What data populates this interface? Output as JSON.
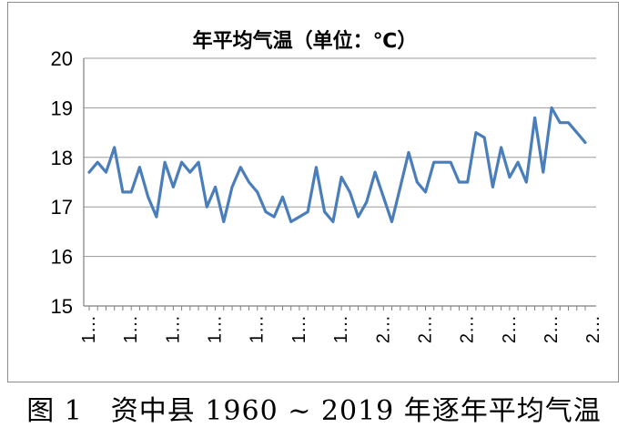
{
  "chart_data": {
    "type": "line",
    "title": "年平均气温（单位：℃）",
    "xlabel": "",
    "ylabel": "",
    "ylim": [
      15,
      20
    ],
    "yticks": [
      "15",
      "16",
      "17",
      "18",
      "19",
      "20"
    ],
    "x_tick_labels": [
      "1…",
      "1…",
      "1…",
      "1…",
      "1…",
      "1…",
      "1…",
      "2…",
      "2…",
      "2…",
      "2…",
      "2…",
      "2…"
    ],
    "grid": "horizontal",
    "series_color": "#4a7ebb",
    "x": [
      1960,
      1961,
      1962,
      1963,
      1964,
      1965,
      1966,
      1967,
      1968,
      1969,
      1970,
      1971,
      1972,
      1973,
      1974,
      1975,
      1976,
      1977,
      1978,
      1979,
      1980,
      1981,
      1982,
      1983,
      1984,
      1985,
      1986,
      1987,
      1988,
      1989,
      1990,
      1991,
      1992,
      1993,
      1994,
      1995,
      1996,
      1997,
      1998,
      1999,
      2000,
      2001,
      2002,
      2003,
      2004,
      2005,
      2006,
      2007,
      2008,
      2009,
      2010,
      2011,
      2012,
      2013,
      2014,
      2015,
      2016,
      2017,
      2018,
      2019
    ],
    "series": [
      {
        "values": [
          17.7,
          17.9,
          17.7,
          18.2,
          17.3,
          17.3,
          17.8,
          17.2,
          16.8,
          17.9,
          17.4,
          17.9,
          17.7,
          17.9,
          17.0,
          17.4,
          16.7,
          17.4,
          17.8,
          17.5,
          17.3,
          16.9,
          16.8,
          17.2,
          16.7,
          16.8,
          16.9,
          17.8,
          16.9,
          16.7,
          17.6,
          17.3,
          16.8,
          17.1,
          17.7,
          17.2,
          16.7,
          17.4,
          18.1,
          17.5,
          17.3,
          17.9,
          17.9,
          17.9,
          17.5,
          17.5,
          18.5,
          18.4,
          17.4,
          18.2,
          17.6,
          17.9,
          17.5,
          18.8,
          17.7,
          19.0,
          18.7,
          18.7,
          18.5,
          18.3
        ]
      }
    ]
  },
  "caption": "图 1　资中县 1960 ~ 2019 年逐年平均气温"
}
